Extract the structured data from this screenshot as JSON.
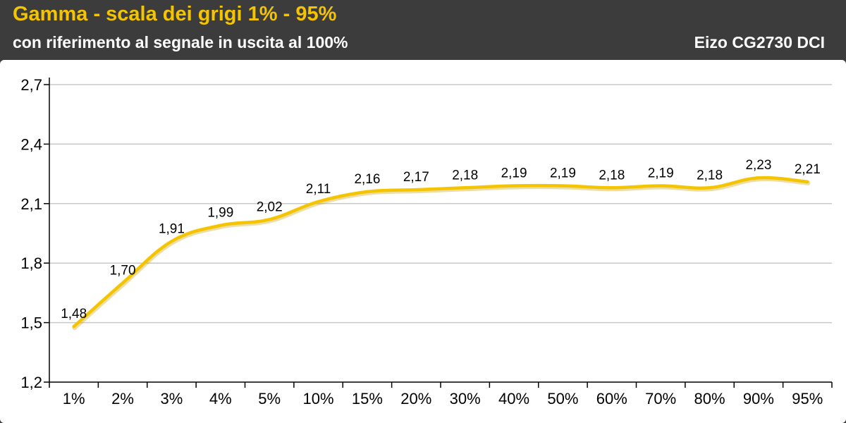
{
  "header": {
    "title": "Gamma - scala dei grigi 1% - 95%",
    "subtitle": "con riferimento al segnale in uscita al 100%",
    "device": "Eizo CG2730  DCI"
  },
  "colors": {
    "background": "#3c3c3c",
    "title": "#f5c400",
    "line": "#f5c400",
    "grid": "#c8c8c8"
  },
  "chart_data": {
    "type": "line",
    "title": "Gamma - scala dei grigi 1% - 95%",
    "subtitle": "con riferimento al segnale in uscita al 100%",
    "categories": [
      "1%",
      "2%",
      "3%",
      "4%",
      "5%",
      "10%",
      "15%",
      "20%",
      "30%",
      "40%",
      "50%",
      "60%",
      "70%",
      "80%",
      "90%",
      "95%"
    ],
    "series": [
      {
        "values": [
          1.48,
          1.7,
          1.91,
          1.99,
          2.02,
          2.11,
          2.16,
          2.17,
          2.18,
          2.19,
          2.19,
          2.18,
          2.19,
          2.18,
          2.23,
          2.21
        ],
        "labels": [
          "1,48",
          "1,70",
          "1,91",
          "1,99",
          "2,02",
          "2,11",
          "2,16",
          "2,17",
          "2,18",
          "2,19",
          "2,19",
          "2,18",
          "2,19",
          "2,18",
          "2,23",
          "2,21"
        ]
      }
    ],
    "yticks": [
      1.2,
      1.5,
      1.8,
      2.1,
      2.4,
      2.7
    ],
    "ytick_labels": [
      "1,2",
      "1,5",
      "1,8",
      "2,1",
      "2,4",
      "2,7"
    ],
    "ylim": [
      1.2,
      2.7
    ],
    "grid": true,
    "legend": "none",
    "xlabel": "",
    "ylabel": ""
  }
}
